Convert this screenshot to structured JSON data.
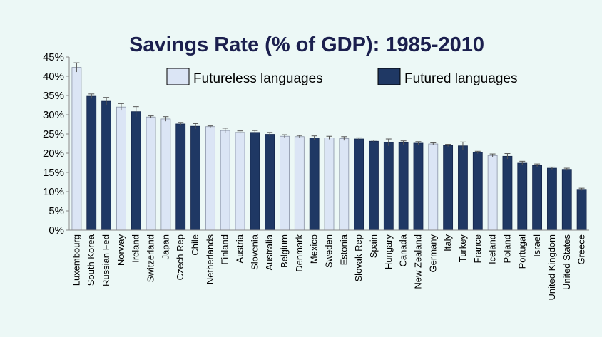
{
  "chart_data": {
    "type": "bar",
    "title": "Savings Rate (% of GDP): 1985-2010",
    "xlabel": "",
    "ylabel": "",
    "ylim": [
      0,
      45
    ],
    "yticks": [
      0,
      5,
      10,
      15,
      20,
      25,
      30,
      35,
      40,
      45
    ],
    "ytick_suffix": "%",
    "legend_position": "top-center",
    "series": [
      {
        "name": "Futureless languages",
        "color": "#dbe5f5"
      },
      {
        "name": "Futured languages",
        "color": "#1f3864"
      }
    ],
    "categories": [
      "Luxembourg",
      "South Korea",
      "Russian Fed",
      "Norway",
      "Ireland",
      "Switzerland",
      "Japan",
      "Czech Rep",
      "Chile",
      "Netherlands",
      "Finland",
      "Austria",
      "Slovenia",
      "Australia",
      "Belgium",
      "Denmark",
      "Mexico",
      "Sweden",
      "Estonia",
      "Slovak Rep",
      "Spain",
      "Hungary",
      "Canada",
      "New Zealand",
      "Germany",
      "Italy",
      "Turkey",
      "France",
      "Iceland",
      "Poland",
      "Portugal",
      "Israel",
      "United Kingdom",
      "United States",
      "Greece"
    ],
    "values": [
      42.3,
      34.8,
      33.5,
      32.0,
      30.8,
      29.4,
      28.9,
      27.6,
      27.0,
      26.9,
      25.9,
      25.4,
      25.4,
      24.9,
      24.4,
      24.3,
      24.0,
      24.0,
      23.8,
      23.7,
      23.1,
      22.8,
      22.7,
      22.6,
      22.4,
      22.0,
      21.9,
      20.2,
      19.4,
      19.2,
      17.4,
      16.8,
      16.1,
      15.8,
      10.6
    ],
    "errors": [
      1.2,
      0.6,
      1.0,
      0.9,
      1.3,
      0.3,
      0.6,
      0.4,
      0.7,
      0.2,
      0.6,
      0.4,
      0.5,
      0.5,
      0.4,
      0.3,
      0.5,
      0.4,
      0.5,
      0.3,
      0.3,
      0.9,
      0.5,
      0.4,
      0.3,
      0.3,
      1.0,
      0.3,
      0.4,
      0.7,
      0.5,
      0.4,
      0.3,
      0.3,
      0.3
    ],
    "groups": [
      0,
      1,
      1,
      0,
      1,
      0,
      0,
      1,
      1,
      0,
      0,
      0,
      1,
      1,
      0,
      0,
      1,
      0,
      0,
      1,
      1,
      1,
      1,
      1,
      0,
      1,
      1,
      1,
      0,
      1,
      1,
      1,
      1,
      1,
      1
    ]
  }
}
